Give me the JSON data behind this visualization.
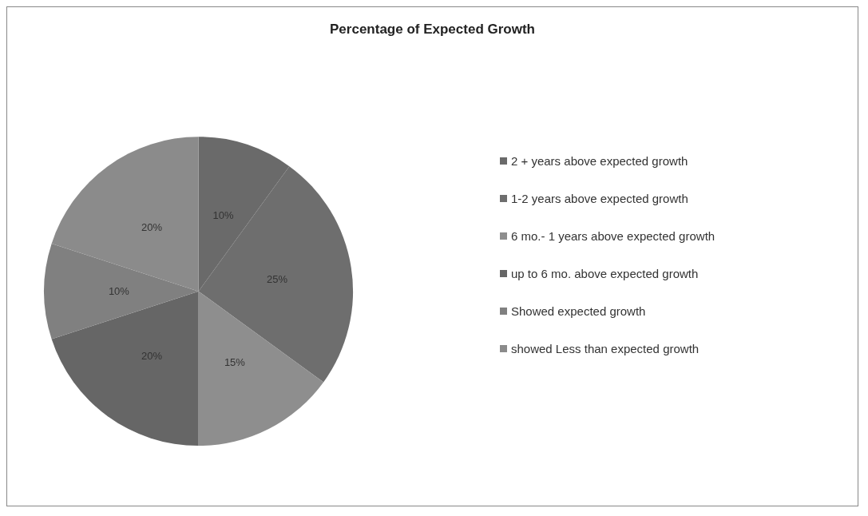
{
  "chart_data": {
    "type": "pie",
    "title": "Percentage of Expected Growth",
    "categories": [
      "2 + years above expected growth",
      "1-2 years above expected growth",
      "6 mo.- 1 years above expected growth",
      "up to 6 mo. above expected growth",
      "Showed expected growth",
      "showed Less than expected growth"
    ],
    "values": [
      10,
      25,
      15,
      20,
      10,
      20
    ],
    "colors": [
      "#6a6a6a",
      "#6e6e6e",
      "#8e8e8e",
      "#666666",
      "#808080",
      "#8b8b8b"
    ],
    "value_labels": [
      "10%",
      "25%",
      "15%",
      "20%",
      "10%",
      "20%"
    ],
    "legend": "right"
  }
}
